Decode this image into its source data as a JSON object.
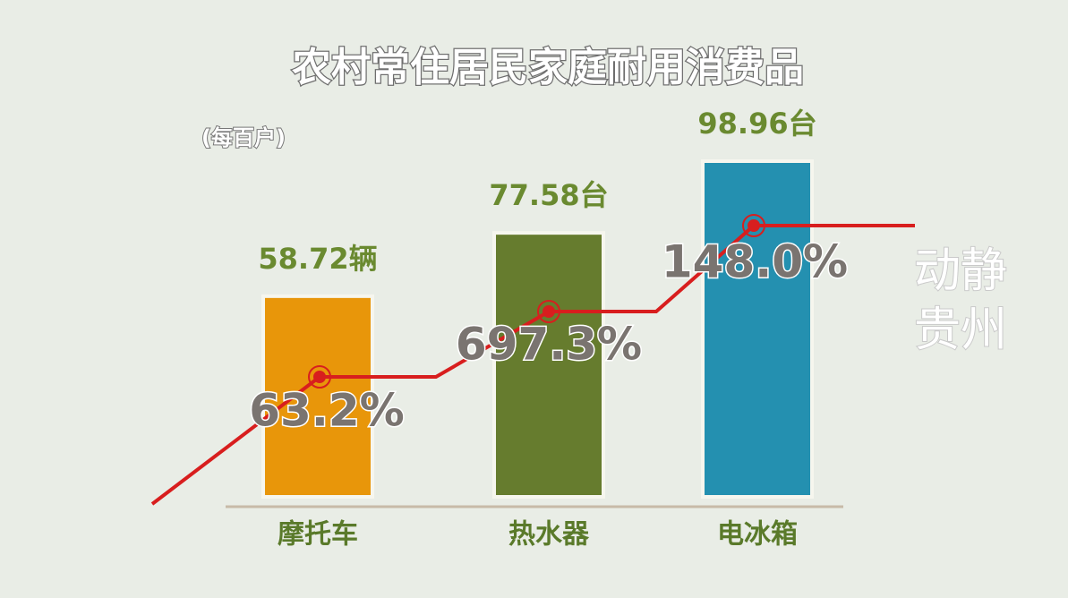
{
  "chart_data": {
    "type": "bar",
    "title": "农村常住居民家庭耐用消费品",
    "subtitle": "(每百户)",
    "categories": [
      "摩托车",
      "热水器",
      "电冰箱"
    ],
    "values": [
      58.72,
      77.58,
      98.96
    ],
    "value_labels": [
      "58.72辆",
      "77.58台",
      "98.96台"
    ],
    "colors": [
      "#e8960a",
      "#667c2e",
      "#2490b0"
    ],
    "annotations": [
      "63.2%",
      "697.3%",
      "148.0%"
    ],
    "watermark": [
      "动静",
      "贵州"
    ]
  }
}
